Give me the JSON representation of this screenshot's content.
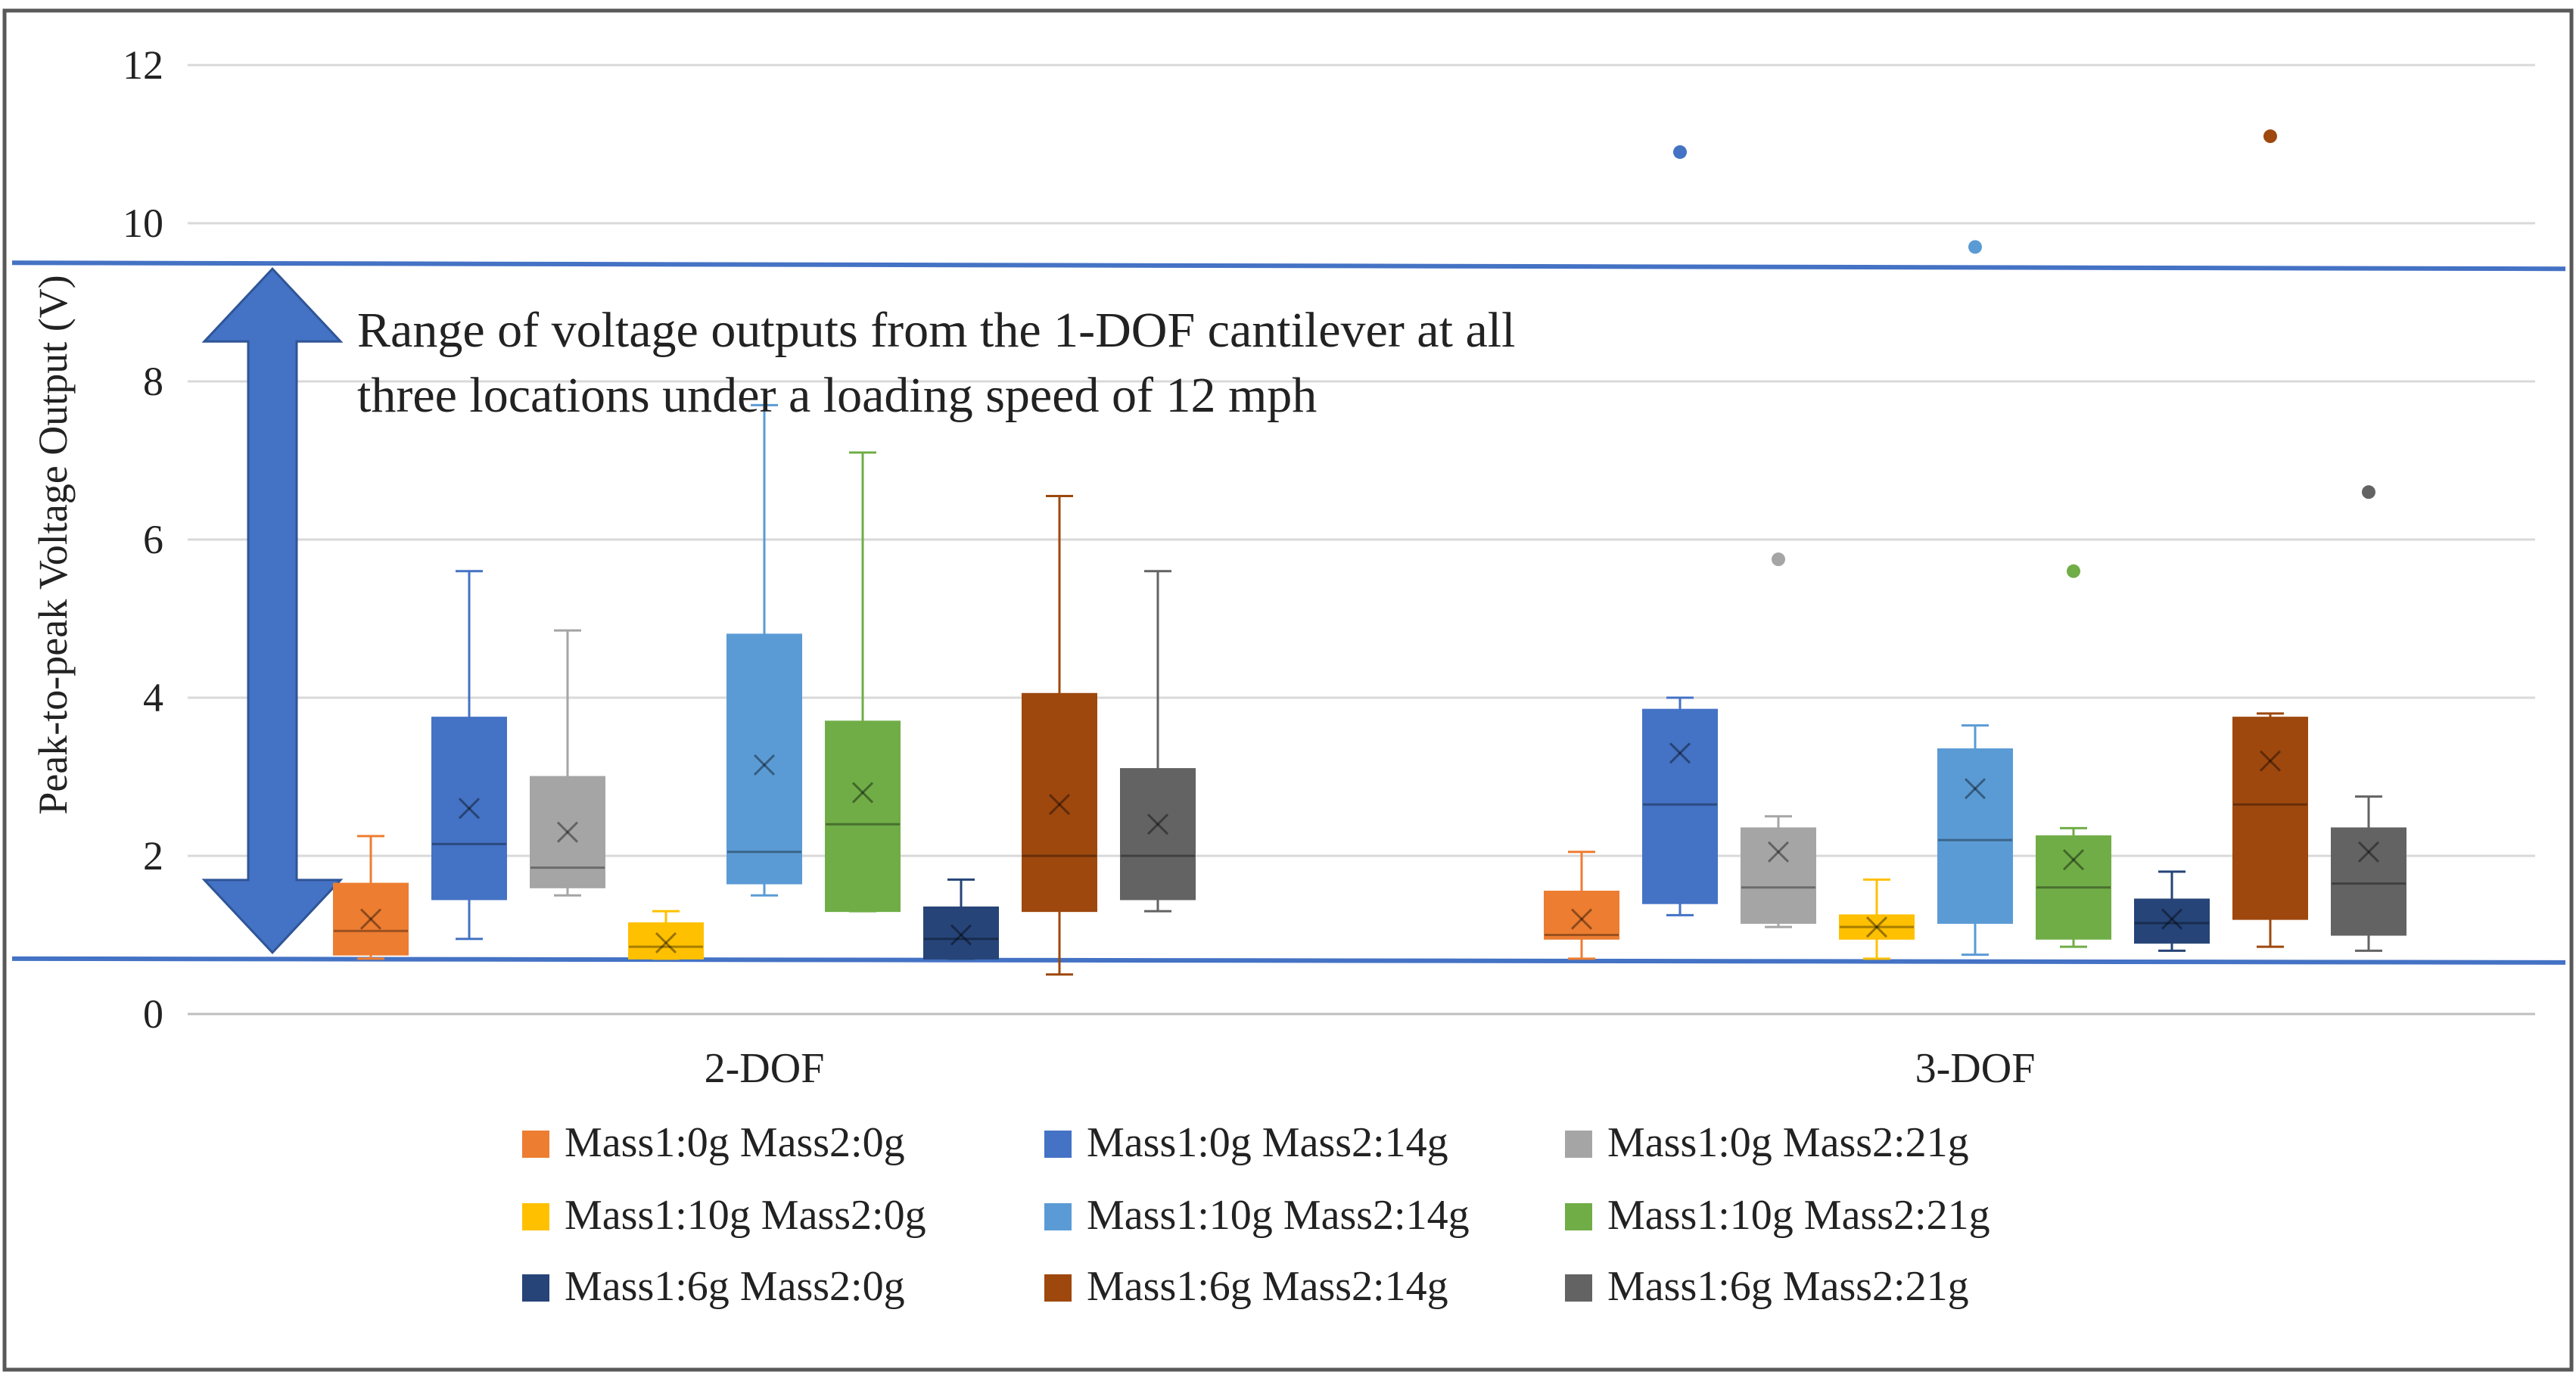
{
  "chart_data": {
    "type": "box",
    "title": "",
    "xlabel": "",
    "ylabel": "Peak-to-peak Voltage Output (V)",
    "ylim": [
      0,
      12
    ],
    "yticks": [
      0,
      2,
      4,
      6,
      8,
      10,
      12
    ],
    "grid": true,
    "legend_position": "bottom",
    "groups": [
      "2-DOF",
      "3-DOF"
    ],
    "series": [
      {
        "name": "Mass1:0g Mass2:0g",
        "color": "#ED7D31",
        "boxes": [
          {
            "min": 0.7,
            "q1": 0.75,
            "median": 1.05,
            "q3": 1.65,
            "max": 2.25,
            "mean": 1.2,
            "outliers": []
          },
          {
            "min": 0.7,
            "q1": 0.95,
            "median": 1.0,
            "q3": 1.55,
            "max": 2.05,
            "mean": 1.2,
            "outliers": []
          }
        ]
      },
      {
        "name": "Mass1:0g Mass2:14g",
        "color": "#4472C4",
        "boxes": [
          {
            "min": 0.95,
            "q1": 1.45,
            "median": 2.15,
            "q3": 3.75,
            "max": 5.6,
            "mean": 2.6,
            "outliers": []
          },
          {
            "min": 1.25,
            "q1": 1.4,
            "median": 2.65,
            "q3": 3.85,
            "max": 4.0,
            "mean": 3.3,
            "outliers": [
              10.9
            ]
          }
        ]
      },
      {
        "name": "Mass1:0g Mass2:21g",
        "color": "#A5A5A5",
        "boxes": [
          {
            "min": 1.5,
            "q1": 1.6,
            "median": 1.85,
            "q3": 3.0,
            "max": 4.85,
            "mean": 2.3,
            "outliers": []
          },
          {
            "min": 1.1,
            "q1": 1.15,
            "median": 1.6,
            "q3": 2.35,
            "max": 2.5,
            "mean": 2.05,
            "outliers": [
              5.75
            ]
          }
        ]
      },
      {
        "name": "Mass1:10g Mass2:0g",
        "color": "#FFC000",
        "boxes": [
          {
            "min": 0.7,
            "q1": 0.7,
            "median": 0.85,
            "q3": 1.15,
            "max": 1.3,
            "mean": 0.9,
            "outliers": []
          },
          {
            "min": 0.7,
            "q1": 0.95,
            "median": 1.1,
            "q3": 1.25,
            "max": 1.7,
            "mean": 1.1,
            "outliers": []
          }
        ]
      },
      {
        "name": "Mass1:10g Mass2:14g",
        "color": "#5B9BD5",
        "boxes": [
          {
            "min": 1.5,
            "q1": 1.65,
            "median": 2.05,
            "q3": 4.8,
            "max": 7.7,
            "mean": 3.15,
            "outliers": []
          },
          {
            "min": 0.75,
            "q1": 1.15,
            "median": 2.2,
            "q3": 3.35,
            "max": 3.65,
            "mean": 2.85,
            "outliers": [
              9.7
            ]
          }
        ]
      },
      {
        "name": "Mass1:10g Mass2:21g",
        "color": "#70AD47",
        "boxes": [
          {
            "min": 1.3,
            "q1": 1.3,
            "median": 2.4,
            "q3": 3.7,
            "max": 7.1,
            "mean": 2.8,
            "outliers": []
          },
          {
            "min": 0.85,
            "q1": 0.95,
            "median": 1.6,
            "q3": 2.25,
            "max": 2.35,
            "mean": 1.95,
            "outliers": [
              5.6
            ]
          }
        ]
      },
      {
        "name": "Mass1:6g Mass2:0g",
        "color": "#264478",
        "boxes": [
          {
            "min": 0.7,
            "q1": 0.7,
            "median": 0.95,
            "q3": 1.35,
            "max": 1.7,
            "mean": 1.0,
            "outliers": []
          },
          {
            "min": 0.8,
            "q1": 0.9,
            "median": 1.15,
            "q3": 1.45,
            "max": 1.8,
            "mean": 1.2,
            "outliers": []
          }
        ]
      },
      {
        "name": "Mass1:6g Mass2:14g",
        "color": "#9E480E",
        "boxes": [
          {
            "min": 0.5,
            "q1": 1.3,
            "median": 2.0,
            "q3": 4.05,
            "max": 6.55,
            "mean": 2.65,
            "outliers": []
          },
          {
            "min": 0.85,
            "q1": 1.2,
            "median": 2.65,
            "q3": 3.75,
            "max": 3.8,
            "mean": 3.2,
            "outliers": [
              11.1
            ]
          }
        ]
      },
      {
        "name": "Mass1:6g Mass2:21g",
        "color": "#636363",
        "boxes": [
          {
            "min": 1.3,
            "q1": 1.45,
            "median": 2.0,
            "q3": 3.1,
            "max": 5.6,
            "mean": 2.4,
            "outliers": []
          },
          {
            "min": 0.8,
            "q1": 1.0,
            "median": 1.65,
            "q3": 2.35,
            "max": 2.75,
            "mean": 2.05,
            "outliers": [
              6.6
            ]
          }
        ]
      }
    ],
    "annotation": {
      "lines": [
        "Range of voltage outputs from the 1-DOF cantilever at all",
        "three locations under a loading speed of 12 mph"
      ],
      "range": [
        0.7,
        9.5
      ],
      "color": "#4472C4"
    }
  }
}
